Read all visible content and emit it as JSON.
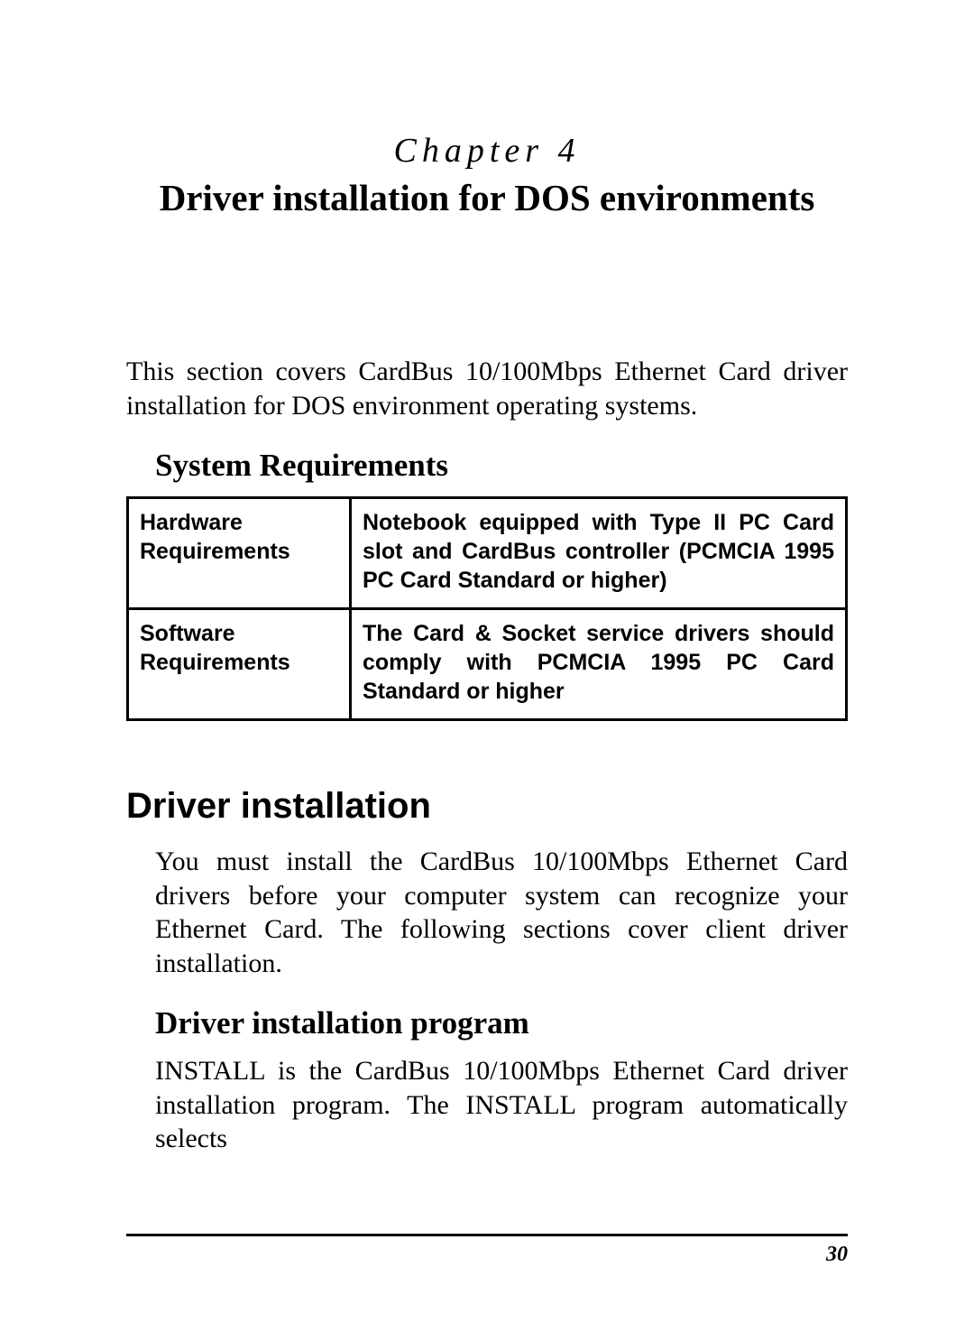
{
  "chapter": {
    "label": "Chapter 4",
    "title": "Driver installation for DOS environments"
  },
  "intro": "This section covers CardBus 10/100Mbps Ethernet Card driver installation for DOS environment operating systems.",
  "system_requirements": {
    "heading": "System Requirements",
    "table": {
      "rows": [
        {
          "label": "Hardware Requirements",
          "desc": "Notebook equipped with  Type II PC Card slot and CardBus controller (PCMCIA 1995 PC Card Standard or higher)"
        },
        {
          "label": "Software Requirements",
          "desc": "The Card & Socket service drivers should comply with PCMCIA 1995 PC Card Standard or higher"
        }
      ]
    }
  },
  "driver_installation": {
    "heading": "Driver installation",
    "body": "You must install the CardBus 10/100Mbps Ethernet Card drivers before your computer system can recognize your Ethernet Card. The following sections cover client driver installation.",
    "program": {
      "heading": "Driver installation program",
      "body": "INSTALL is the CardBus 10/100Mbps Ethernet Card driver installation program. The INSTALL program automatically selects"
    }
  },
  "page_number": "30",
  "styles": {
    "page_bg": "#ffffff",
    "text_color": "#000000",
    "rule_color": "#000000",
    "table_border_color": "#000000",
    "serif_font": "Times New Roman",
    "sans_font": "Arial"
  }
}
